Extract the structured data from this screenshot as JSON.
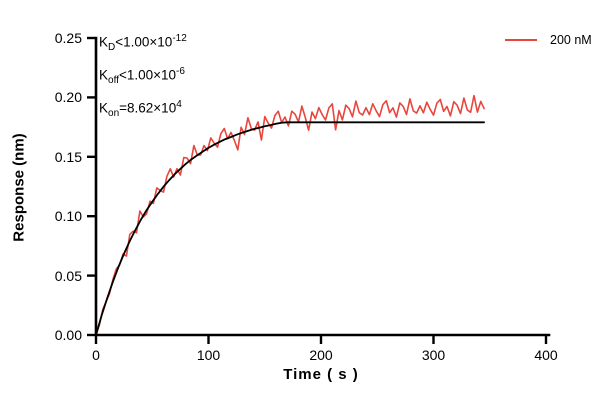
{
  "figure": {
    "background": "#ffffff"
  },
  "legend": {
    "label": "200 nM",
    "color": "#e8463c"
  },
  "chart_data": {
    "type": "line",
    "title": "",
    "xlabel": "Time ( s )",
    "ylabel": "Response (nm)",
    "xlim": [
      0,
      400
    ],
    "ylim": [
      0,
      0.25
    ],
    "grid": false,
    "legend_position": "top-right",
    "x_ticks": [
      "0",
      "100",
      "200",
      "300",
      "400"
    ],
    "y_ticks": [
      "0.00",
      "0.05",
      "0.10",
      "0.15",
      "0.20",
      "0.25"
    ],
    "axis_color": "#000000",
    "annotations": [
      {
        "base": "K",
        "sub": "D",
        "mid": "<1.00×10",
        "sup": "-12"
      },
      {
        "base": "K",
        "sub": "off",
        "mid": "<1.00×10",
        "sup": "-6"
      },
      {
        "base": "K",
        "sub": "on",
        "mid": "=8.62×10",
        "sup": "4"
      }
    ],
    "series": [
      {
        "name": "200 nM",
        "role": "data",
        "color": "#e8463c",
        "width": 1.6,
        "points": [
          [
            0,
            0
          ],
          [
            3,
            0.0084
          ],
          [
            6,
            0.0216
          ],
          [
            9,
            0.028
          ],
          [
            12,
            0.0347
          ],
          [
            15,
            0.0467
          ],
          [
            18,
            0.0556
          ],
          [
            21,
            0.0589
          ],
          [
            24,
            0.068
          ],
          [
            27,
            0.0665
          ],
          [
            30,
            0.0847
          ],
          [
            33,
            0.0874
          ],
          [
            36,
            0.086
          ],
          [
            39,
            0.1044
          ],
          [
            42,
            0.0994
          ],
          [
            45,
            0.102
          ],
          [
            48,
            0.1126
          ],
          [
            51,
            0.1108
          ],
          [
            54,
            0.1238
          ],
          [
            57,
            0.1217
          ],
          [
            60,
            0.1203
          ],
          [
            63,
            0.1336
          ],
          [
            66,
            0.1399
          ],
          [
            69,
            0.1329
          ],
          [
            72,
            0.14
          ],
          [
            75,
            0.1347
          ],
          [
            78,
            0.1494
          ],
          [
            81,
            0.1489
          ],
          [
            84,
            0.1442
          ],
          [
            87,
            0.1595
          ],
          [
            90,
            0.1516
          ],
          [
            93,
            0.1515
          ],
          [
            96,
            0.1594
          ],
          [
            99,
            0.1552
          ],
          [
            102,
            0.1659
          ],
          [
            105,
            0.1616
          ],
          [
            108,
            0.1582
          ],
          [
            111,
            0.1695
          ],
          [
            114,
            0.1738
          ],
          [
            117,
            0.1652
          ],
          [
            120,
            0.1705
          ],
          [
            123,
            0.1637
          ],
          [
            126,
            0.1558
          ],
          [
            129,
            0.1748
          ],
          [
            132,
            0.1688
          ],
          [
            135,
            0.1828
          ],
          [
            138,
            0.1737
          ],
          [
            141,
            0.1725
          ],
          [
            144,
            0.1794
          ],
          [
            147,
            0.1641
          ],
          [
            150,
            0.1838
          ],
          [
            153,
            0.1785
          ],
          [
            156,
            0.1742
          ],
          [
            159,
            0.1848
          ],
          [
            162,
            0.1884
          ],
          [
            165,
            0.1789
          ],
          [
            168,
            0.1835
          ],
          [
            171,
            0.176
          ],
          [
            174,
            0.1884
          ],
          [
            177,
            0.1859
          ],
          [
            180,
            0.1793
          ],
          [
            183,
            0.1927
          ],
          [
            186,
            0.1831
          ],
          [
            189,
            0.1724
          ],
          [
            192,
            0.1877
          ],
          [
            195,
            0.1821
          ],
          [
            198,
            0.1914
          ],
          [
            201,
            0.1857
          ],
          [
            204,
            0.181
          ],
          [
            207,
            0.1912
          ],
          [
            210,
            0.1945
          ],
          [
            213,
            0.1727
          ],
          [
            216,
            0.1889
          ],
          [
            219,
            0.1811
          ],
          [
            222,
            0.1934
          ],
          [
            225,
            0.1906
          ],
          [
            228,
            0.1837
          ],
          [
            231,
            0.1969
          ],
          [
            234,
            0.1871
          ],
          [
            237,
            0.1852
          ],
          [
            240,
            0.1913
          ],
          [
            243,
            0.1855
          ],
          [
            246,
            0.1946
          ],
          [
            249,
            0.1888
          ],
          [
            252,
            0.1838
          ],
          [
            255,
            0.194
          ],
          [
            258,
            0.1971
          ],
          [
            261,
            0.1872
          ],
          [
            264,
            0.1912
          ],
          [
            267,
            0.1834
          ],
          [
            270,
            0.1954
          ],
          [
            273,
            0.1925
          ],
          [
            276,
            0.1856
          ],
          [
            279,
            0.1987
          ],
          [
            282,
            0.1887
          ],
          [
            285,
            0.1868
          ],
          [
            288,
            0.1929
          ],
          [
            291,
            0.187
          ],
          [
            294,
            0.196
          ],
          [
            297,
            0.1901
          ],
          [
            300,
            0.1851
          ],
          [
            303,
            0.1952
          ],
          [
            306,
            0.1982
          ],
          [
            309,
            0.1883
          ],
          [
            312,
            0.1923
          ],
          [
            315,
            0.1844
          ],
          [
            318,
            0.1964
          ],
          [
            321,
            0.1934
          ],
          [
            324,
            0.1864
          ],
          [
            327,
            0.1995
          ],
          [
            330,
            0.1895
          ],
          [
            333,
            0.1875
          ],
          [
            336,
            0.2016
          ],
          [
            339,
            0.1876
          ],
          [
            342,
            0.1966
          ],
          [
            345,
            0.1906
          ]
        ]
      },
      {
        "name": "fit",
        "role": "fit",
        "color": "#000000",
        "width": 1.8,
        "points": [
          [
            0,
            0
          ],
          [
            5,
            0.0164
          ],
          [
            10,
            0.0312
          ],
          [
            15,
            0.0449
          ],
          [
            20,
            0.0573
          ],
          [
            25,
            0.0686
          ],
          [
            30,
            0.0791
          ],
          [
            35,
            0.0885
          ],
          [
            40,
            0.0972
          ],
          [
            45,
            0.1051
          ],
          [
            50,
            0.1122
          ],
          [
            55,
            0.1188
          ],
          [
            60,
            0.1248
          ],
          [
            65,
            0.1303
          ],
          [
            70,
            0.1354
          ],
          [
            75,
            0.1399
          ],
          [
            80,
            0.1442
          ],
          [
            85,
            0.148
          ],
          [
            90,
            0.1513
          ],
          [
            95,
            0.1545
          ],
          [
            100,
            0.1575
          ],
          [
            105,
            0.1602
          ],
          [
            110,
            0.1626
          ],
          [
            115,
            0.1649
          ],
          [
            120,
            0.1667
          ],
          [
            125,
            0.1686
          ],
          [
            130,
            0.1703
          ],
          [
            135,
            0.1718
          ],
          [
            140,
            0.1733
          ],
          [
            145,
            0.1745
          ],
          [
            150,
            0.1757
          ],
          [
            155,
            0.1767
          ],
          [
            160,
            0.1778
          ],
          [
            165,
            0.1787
          ],
          [
            170,
            0.179
          ],
          [
            345,
            0.179
          ]
        ]
      }
    ]
  }
}
